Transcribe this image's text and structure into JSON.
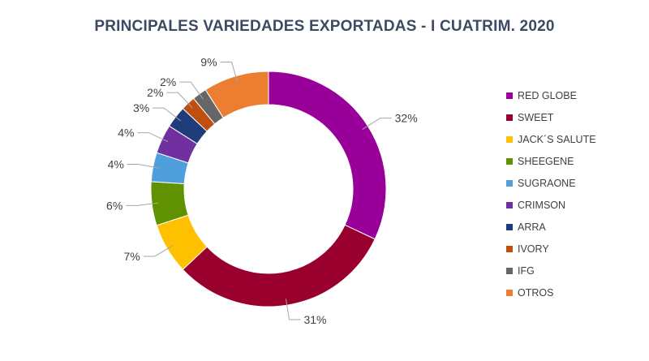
{
  "chart_data": {
    "type": "pie",
    "title": "PRINCIPALES VARIEDADES EXPORTADAS - I CUATRIM. 2020",
    "categories": [
      "RED GLOBE",
      "SWEET",
      "JACK´S SALUTE",
      "SHEEGENE",
      "SUGRAONE",
      "CRIMSON",
      "ARRA",
      "IVORY",
      "IFG",
      "OTROS"
    ],
    "values": [
      32,
      31,
      7,
      6,
      4,
      4,
      3,
      2,
      2,
      9
    ],
    "labels": [
      "32%",
      "31%",
      "7%",
      "6%",
      "4%",
      "4%",
      "3%",
      "2%",
      "2%",
      "9%"
    ],
    "colors": [
      "#990099",
      "#99002e",
      "#ffc000",
      "#5f9100",
      "#4f9fdc",
      "#7030a0",
      "#1f3c7a",
      "#c04f0f",
      "#666666",
      "#ed7d31"
    ],
    "donut": true,
    "legend_position": "right"
  }
}
